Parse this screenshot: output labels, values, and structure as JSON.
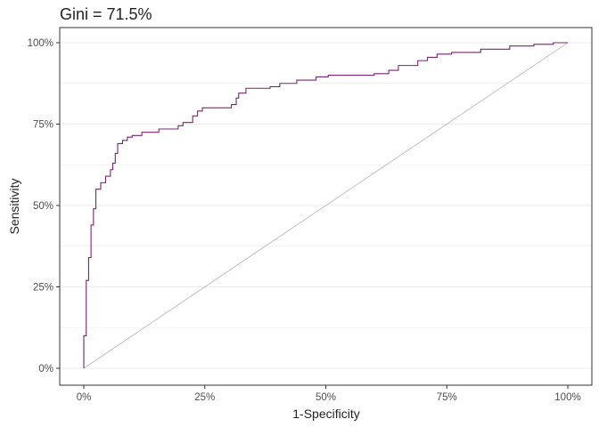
{
  "chart_data": {
    "type": "line",
    "title": "Gini = 71.5%",
    "xlabel": "1-Specificity",
    "ylabel": "Sensitivity",
    "xlim": [
      0,
      1
    ],
    "ylim": [
      0,
      1
    ],
    "x_ticks": [
      0,
      0.25,
      0.5,
      0.75,
      1
    ],
    "x_tick_labels": [
      "0%",
      "25%",
      "50%",
      "75%",
      "100%"
    ],
    "y_ticks": [
      0,
      0.25,
      0.5,
      0.75,
      1
    ],
    "y_tick_labels": [
      "0%",
      "25%",
      "50%",
      "75%",
      "100%"
    ],
    "grid": true,
    "colors": {
      "roc": "#7b2470",
      "reference": "#b3b3b3",
      "grid": "#ebebeb",
      "panel_border": "#333333"
    },
    "series": [
      {
        "kind": "step",
        "points": [
          [
            0.0,
            0.0
          ],
          [
            0.0,
            0.1
          ],
          [
            0.005,
            0.1
          ],
          [
            0.005,
            0.27
          ],
          [
            0.01,
            0.27
          ],
          [
            0.01,
            0.34
          ],
          [
            0.015,
            0.34
          ],
          [
            0.015,
            0.44
          ],
          [
            0.02,
            0.44
          ],
          [
            0.02,
            0.49
          ],
          [
            0.025,
            0.49
          ],
          [
            0.025,
            0.55
          ],
          [
            0.035,
            0.55
          ],
          [
            0.035,
            0.57
          ],
          [
            0.045,
            0.57
          ],
          [
            0.045,
            0.59
          ],
          [
            0.055,
            0.59
          ],
          [
            0.055,
            0.61
          ],
          [
            0.06,
            0.61
          ],
          [
            0.06,
            0.63
          ],
          [
            0.065,
            0.63
          ],
          [
            0.065,
            0.66
          ],
          [
            0.07,
            0.66
          ],
          [
            0.07,
            0.69
          ],
          [
            0.08,
            0.69
          ],
          [
            0.08,
            0.7
          ],
          [
            0.09,
            0.7
          ],
          [
            0.09,
            0.71
          ],
          [
            0.1,
            0.71
          ],
          [
            0.1,
            0.715
          ],
          [
            0.12,
            0.715
          ],
          [
            0.12,
            0.725
          ],
          [
            0.155,
            0.725
          ],
          [
            0.155,
            0.735
          ],
          [
            0.195,
            0.735
          ],
          [
            0.195,
            0.745
          ],
          [
            0.205,
            0.745
          ],
          [
            0.205,
            0.755
          ],
          [
            0.225,
            0.755
          ],
          [
            0.225,
            0.775
          ],
          [
            0.235,
            0.775
          ],
          [
            0.235,
            0.79
          ],
          [
            0.245,
            0.79
          ],
          [
            0.245,
            0.8
          ],
          [
            0.305,
            0.8
          ],
          [
            0.305,
            0.81
          ],
          [
            0.315,
            0.81
          ],
          [
            0.315,
            0.83
          ],
          [
            0.32,
            0.83
          ],
          [
            0.32,
            0.845
          ],
          [
            0.335,
            0.845
          ],
          [
            0.335,
            0.86
          ],
          [
            0.385,
            0.86
          ],
          [
            0.385,
            0.865
          ],
          [
            0.405,
            0.865
          ],
          [
            0.405,
            0.875
          ],
          [
            0.44,
            0.875
          ],
          [
            0.44,
            0.885
          ],
          [
            0.48,
            0.885
          ],
          [
            0.48,
            0.895
          ],
          [
            0.505,
            0.895
          ],
          [
            0.505,
            0.9
          ],
          [
            0.6,
            0.9
          ],
          [
            0.6,
            0.905
          ],
          [
            0.63,
            0.905
          ],
          [
            0.63,
            0.915
          ],
          [
            0.65,
            0.915
          ],
          [
            0.65,
            0.93
          ],
          [
            0.69,
            0.93
          ],
          [
            0.69,
            0.945
          ],
          [
            0.71,
            0.945
          ],
          [
            0.71,
            0.955
          ],
          [
            0.73,
            0.955
          ],
          [
            0.73,
            0.965
          ],
          [
            0.76,
            0.965
          ],
          [
            0.76,
            0.97
          ],
          [
            0.82,
            0.97
          ],
          [
            0.82,
            0.98
          ],
          [
            0.88,
            0.98
          ],
          [
            0.88,
            0.99
          ],
          [
            0.93,
            0.99
          ],
          [
            0.93,
            0.995
          ],
          [
            0.97,
            0.995
          ],
          [
            0.97,
            1.0
          ],
          [
            1.0,
            1.0
          ]
        ]
      },
      {
        "kind": "diagonal",
        "points": [
          [
            0,
            0
          ],
          [
            1,
            1
          ]
        ]
      }
    ]
  }
}
